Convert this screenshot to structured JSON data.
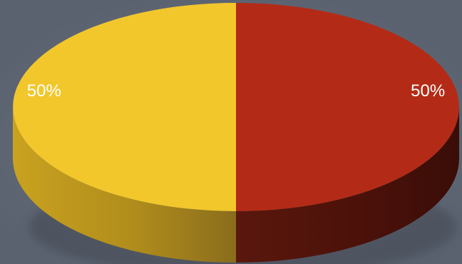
{
  "colors": {
    "background": "#5c6470",
    "slice_yellow": "#f2c72c",
    "slice_red": "#b32b16"
  },
  "chart_data": {
    "type": "pie",
    "style": "3d",
    "categories": [
      "",
      ""
    ],
    "values": [
      50,
      50
    ],
    "data_labels": [
      "50%",
      "50%"
    ],
    "colors": [
      "#b32b16",
      "#f2c72c"
    ],
    "title": "",
    "legend": "none"
  }
}
